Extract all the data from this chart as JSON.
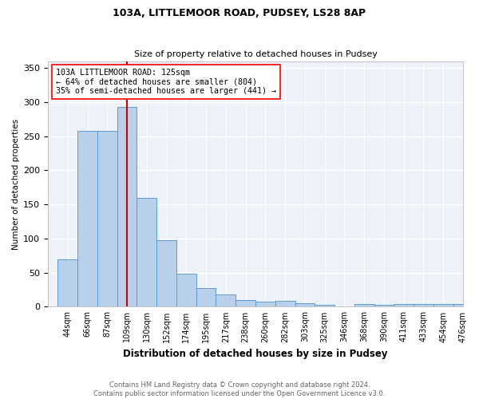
{
  "title_line1": "103A, LITTLEMOOR ROAD, PUDSEY, LS28 8AP",
  "title_line2": "Size of property relative to detached houses in Pudsey",
  "xlabel": "Distribution of detached houses by size in Pudsey",
  "ylabel": "Number of detached properties",
  "categories": [
    "44sqm",
    "66sqm",
    "87sqm",
    "109sqm",
    "130sqm",
    "152sqm",
    "174sqm",
    "195sqm",
    "217sqm",
    "238sqm",
    "260sqm",
    "282sqm",
    "303sqm",
    "325sqm",
    "346sqm",
    "368sqm",
    "390sqm",
    "411sqm",
    "433sqm",
    "454sqm",
    "476sqm"
  ],
  "values": [
    70,
    258,
    258,
    293,
    160,
    97,
    48,
    27,
    18,
    10,
    7,
    9,
    5,
    3,
    0,
    4,
    3,
    4,
    4,
    4,
    4
  ],
  "bar_color": "#b8d0ea",
  "bar_edge_color": "#5b9bd5",
  "red_line_color": "#cc0000",
  "red_line_x": 3.5,
  "annotation_text": "103A LITTLEMOOR ROAD: 125sqm\n← 64% of detached houses are smaller (804)\n35% of semi-detached houses are larger (441) →",
  "annotation_box_color": "white",
  "annotation_box_edge_color": "red",
  "ylim": [
    0,
    360
  ],
  "yticks": [
    0,
    50,
    100,
    150,
    200,
    250,
    300,
    350
  ],
  "footer_line1": "Contains HM Land Registry data © Crown copyright and database right 2024.",
  "footer_line2": "Contains public sector information licensed under the Open Government Licence v3.0.",
  "background_color": "#edf2f9"
}
